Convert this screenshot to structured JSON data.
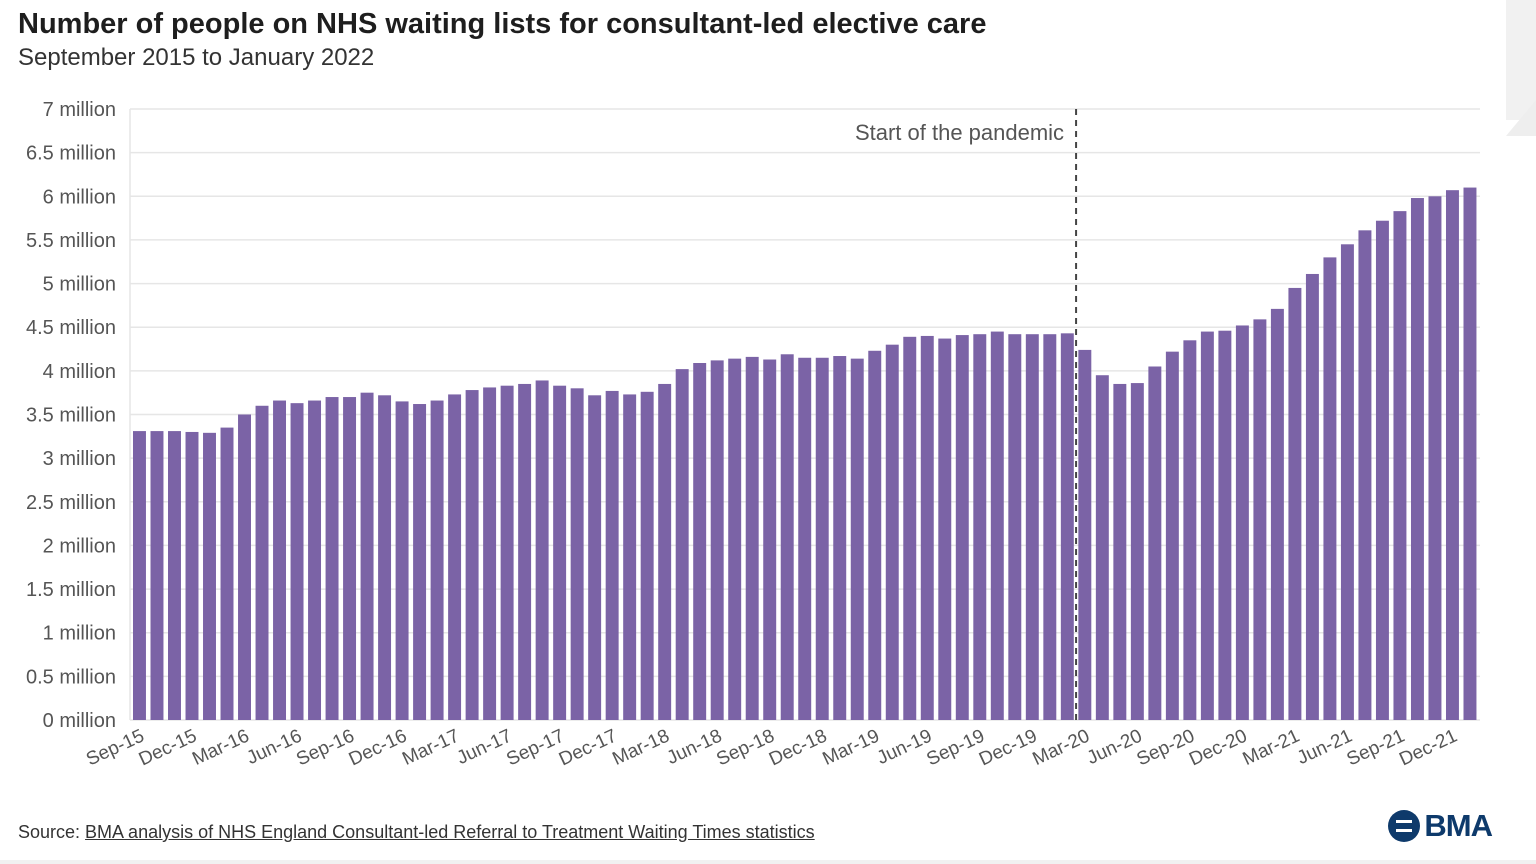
{
  "title": "Number of people on NHS waiting lists for consultant-led elective care",
  "subtitle": "September 2015 to January 2022",
  "source": {
    "prefix": "Source: ",
    "link_text": "BMA analysis of NHS England Consultant-led Referral to Treatment Waiting Times statistics"
  },
  "logo": {
    "text": "BMA",
    "icon": "bma-logo-icon"
  },
  "colors": {
    "bar": "#7b63a6",
    "grid": "#e6e6e6",
    "axis_text": "#555555",
    "annotation": "#555555",
    "brand": "#0e3a6b"
  },
  "chart_data": {
    "type": "bar",
    "title": "Number of people on NHS waiting lists for consultant-led elective care",
    "subtitle": "September 2015 to January 2022",
    "ylim": [
      0,
      7000000
    ],
    "y_ticks": [
      0,
      500000,
      1000000,
      1500000,
      2000000,
      2500000,
      3000000,
      3500000,
      4000000,
      4500000,
      5000000,
      5500000,
      6000000,
      6500000,
      7000000
    ],
    "y_tick_labels": [
      "0 million",
      "0.5 million",
      "1 million",
      "1.5 million",
      "2 million",
      "2.5 million",
      "3 million",
      "3.5 million",
      "4 million",
      "4.5 million",
      "5 million",
      "5.5 million",
      "6 million",
      "6.5 million",
      "7 million"
    ],
    "grid": true,
    "x_tick_labels": [
      {
        "index": 0,
        "label": "Sep-15"
      },
      {
        "index": 3,
        "label": "Dec-15"
      },
      {
        "index": 6,
        "label": "Mar-16"
      },
      {
        "index": 9,
        "label": "Jun-16"
      },
      {
        "index": 12,
        "label": "Sep-16"
      },
      {
        "index": 15,
        "label": "Dec-16"
      },
      {
        "index": 18,
        "label": "Mar-17"
      },
      {
        "index": 21,
        "label": "Jun-17"
      },
      {
        "index": 24,
        "label": "Sep-17"
      },
      {
        "index": 27,
        "label": "Dec-17"
      },
      {
        "index": 30,
        "label": "Mar-18"
      },
      {
        "index": 33,
        "label": "Jun-18"
      },
      {
        "index": 36,
        "label": "Sep-18"
      },
      {
        "index": 39,
        "label": "Dec-18"
      },
      {
        "index": 42,
        "label": "Mar-19"
      },
      {
        "index": 45,
        "label": "Jun-19"
      },
      {
        "index": 48,
        "label": "Sep-19"
      },
      {
        "index": 51,
        "label": "Dec-19"
      },
      {
        "index": 54,
        "label": "Mar-20"
      },
      {
        "index": 57,
        "label": "Jun-20"
      },
      {
        "index": 60,
        "label": "Sep-20"
      },
      {
        "index": 63,
        "label": "Dec-20"
      },
      {
        "index": 66,
        "label": "Mar-21"
      },
      {
        "index": 69,
        "label": "Jun-21"
      },
      {
        "index": 72,
        "label": "Sep-21"
      },
      {
        "index": 75,
        "label": "Dec-21"
      }
    ],
    "values": [
      3310000,
      3310000,
      3310000,
      3300000,
      3290000,
      3350000,
      3500000,
      3600000,
      3660000,
      3630000,
      3660000,
      3700000,
      3700000,
      3750000,
      3720000,
      3650000,
      3620000,
      3660000,
      3730000,
      3780000,
      3810000,
      3830000,
      3850000,
      3890000,
      3830000,
      3800000,
      3720000,
      3770000,
      3730000,
      3760000,
      3850000,
      4020000,
      4090000,
      4120000,
      4140000,
      4160000,
      4130000,
      4190000,
      4150000,
      4150000,
      4170000,
      4140000,
      4230000,
      4300000,
      4390000,
      4400000,
      4370000,
      4410000,
      4420000,
      4450000,
      4420000,
      4420000,
      4420000,
      4430000,
      4240000,
      3950000,
      3850000,
      3860000,
      4050000,
      4220000,
      4350000,
      4450000,
      4460000,
      4520000,
      4590000,
      4710000,
      4950000,
      5110000,
      5300000,
      5450000,
      5610000,
      5720000,
      5830000,
      5980000,
      6000000,
      6070000,
      6100000
    ],
    "annotation": {
      "label": "Start of the pandemic",
      "at_index": 54
    }
  }
}
